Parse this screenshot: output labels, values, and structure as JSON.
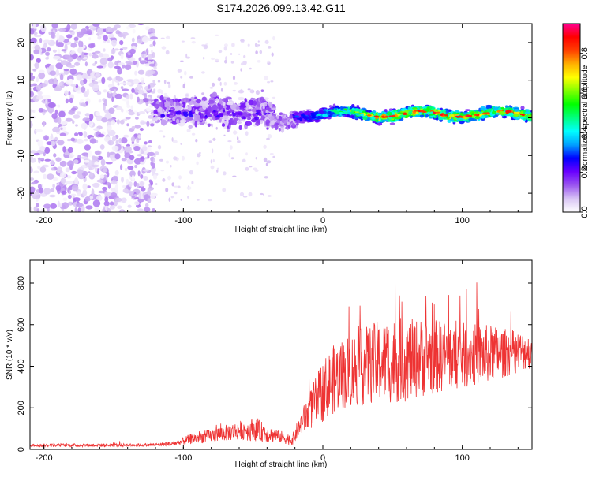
{
  "chart_data": [
    {
      "type": "heatmap",
      "title": "S174.2026.099.13.42.G11",
      "xlabel": "Height of straight line (km)",
      "ylabel": "Frequency (Hz)",
      "xlim": [
        -210,
        150
      ],
      "ylim": [
        -25,
        25
      ],
      "xticks": [
        -200,
        -100,
        0,
        100
      ],
      "xtick_labels": [
        "-200",
        "-100",
        "0",
        "100"
      ],
      "yticks": [
        -20,
        -10,
        0,
        10,
        20
      ],
      "ytick_labels": [
        "-20",
        "-10",
        "0",
        "10",
        "20"
      ],
      "colorbar": {
        "label": "Normalized spectral amplitude",
        "range": [
          0,
          0.95
        ],
        "ticks": [
          0.0,
          0.2,
          0.4,
          0.6,
          0.8
        ],
        "tick_labels": [
          "0.0",
          "0.2",
          "0.4",
          "0.6",
          "0.8"
        ],
        "colors": [
          "#ffffff",
          "#d8c4f4",
          "#9a55ef",
          "#6a00ff",
          "#0000ff",
          "#00a0ff",
          "#00ffff",
          "#00ff80",
          "#00ff00",
          "#80ff00",
          "#ffff00",
          "#ffb000",
          "#ff4000",
          "#ff0000",
          "#ff0090"
        ]
      },
      "regions": [
        {
          "x_range": [
            -210,
            -120
          ],
          "freq_range": [
            -25,
            25
          ],
          "amplitude": 0.05,
          "description": "scattered low-amplitude noise"
        },
        {
          "x_range": [
            -120,
            -35
          ],
          "freq_range": [
            -10,
            10
          ],
          "amplitude": 0.12,
          "description": "spread energy around 0-5 Hz"
        },
        {
          "x_range": [
            -20,
            150
          ],
          "freq_center": 1,
          "freq_width": 3,
          "amplitude": 0.55,
          "description": "strong narrow band near 0 Hz"
        }
      ]
    },
    {
      "type": "line",
      "xlabel": "Height of straight line (km)",
      "ylabel": "SNR (10 * v/v)",
      "xlim": [
        -210,
        150
      ],
      "ylim": [
        0,
        910
      ],
      "xticks": [
        -200,
        -100,
        0,
        100
      ],
      "xtick_labels": [
        "-200",
        "-100",
        "0",
        "100"
      ],
      "yticks": [
        0,
        200,
        400,
        600,
        800
      ],
      "ytick_labels": [
        "0",
        "200",
        "400",
        "600",
        "800"
      ],
      "color": "#ee3333",
      "series": [
        {
          "name": "SNR",
          "x": [
            -210,
            -180,
            -150,
            -120,
            -105,
            -95,
            -80,
            -70,
            -60,
            -50,
            -40,
            -30,
            -22,
            -15,
            -10,
            -5,
            0,
            5,
            10,
            20,
            30,
            40,
            50,
            60,
            70,
            80,
            90,
            100,
            110,
            120,
            130,
            140,
            150
          ],
          "mean": [
            20,
            20,
            20,
            22,
            30,
            50,
            65,
            80,
            90,
            95,
            80,
            60,
            45,
            130,
            180,
            230,
            280,
            320,
            350,
            380,
            400,
            420,
            430,
            430,
            440,
            445,
            450,
            450,
            455,
            460,
            465,
            470,
            470
          ],
          "spread": [
            8,
            8,
            8,
            8,
            12,
            25,
            30,
            40,
            45,
            55,
            45,
            30,
            25,
            60,
            90,
            120,
            150,
            160,
            170,
            180,
            190,
            200,
            210,
            200,
            190,
            180,
            170,
            160,
            150,
            140,
            120,
            100,
            80
          ]
        }
      ]
    }
  ]
}
